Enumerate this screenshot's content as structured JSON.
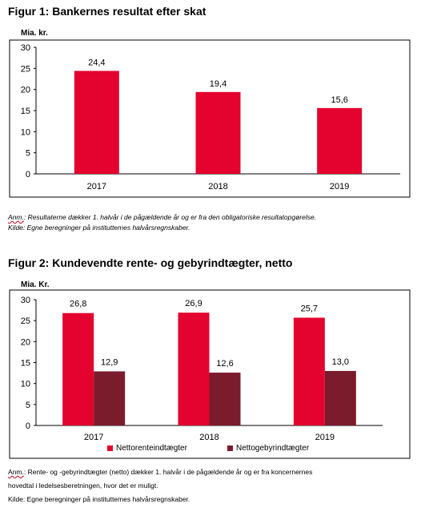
{
  "chart_data": [
    {
      "type": "bar",
      "title": "Figur 1: Bankernes resultat efter skat",
      "ylabel": "Mia. kr.",
      "categories": [
        "2017",
        "2018",
        "2019"
      ],
      "series": [
        {
          "values": [
            24.4,
            19.4,
            15.6
          ],
          "labels": [
            "24,4",
            "19,4",
            "15,6"
          ],
          "color": "#e4032e"
        }
      ],
      "ylim": [
        0,
        30
      ],
      "yticks": [
        "0",
        "5",
        "10",
        "15",
        "20",
        "25",
        "30"
      ],
      "grid": false,
      "legend": "none"
    },
    {
      "type": "bar",
      "title": "Figur 2: Kundevendte rente- og gebyrindtægter, netto",
      "ylabel": "Mia. Kr.",
      "categories": [
        "2017",
        "2018",
        "2019"
      ],
      "series": [
        {
          "name": "Nettorenteindtægter",
          "values": [
            26.8,
            26.9,
            25.7
          ],
          "labels": [
            "26,8",
            "26,9",
            "25,7"
          ],
          "color": "#e4032e"
        },
        {
          "name": "Nettogebyrindtægter",
          "values": [
            12.9,
            12.6,
            13.0
          ],
          "labels": [
            "12,9",
            "12,6",
            "13,0"
          ],
          "color": "#7b1c2c"
        }
      ],
      "ylim": [
        0,
        30
      ],
      "yticks": [
        "0",
        "5",
        "10",
        "15",
        "20",
        "25",
        "30"
      ],
      "grid": false,
      "legend": "bottom"
    }
  ],
  "notes1": {
    "anm_label": "Anm.",
    "anm_text": ": Resultaterne dækker 1. halvår i de pågældende år og er fra den obligatoriske resultatopgørelse.",
    "source": "Kilde: Egne beregninger på instituttemes halvårsregnskaber."
  },
  "notes2": {
    "anm_label": "Anm.",
    "anm_text": ": Rente- og -gebyrindtægter (netto) dækker 1. halvår i de pågældende år og er fra koncernernes",
    "anm_text2": "hovedtal i ledelsesberetningen, hvor det er muligt.",
    "source": "Kilde: Egne beregninger på instituttemes halvårsregnskaber."
  }
}
